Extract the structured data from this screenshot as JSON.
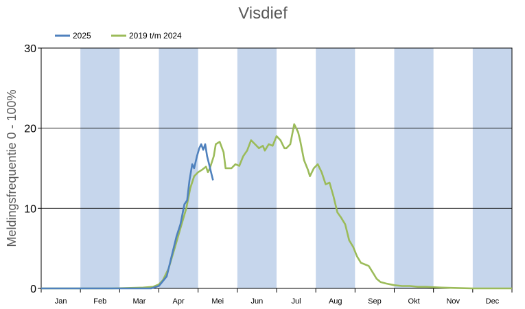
{
  "chart_data": {
    "type": "line",
    "title": "Visdief",
    "ylabel": "Meldingsfrequentie 0 - 100%",
    "xlabel": "",
    "ylim": [
      0,
      30
    ],
    "yticks": [
      0,
      10,
      20,
      30
    ],
    "grid": "horizontal",
    "legend_position": "top-left",
    "month_bands": "alternating",
    "colors": {
      "band": "#c6d6ec",
      "grid": "#000000"
    },
    "categories": [
      "Jan",
      "Feb",
      "Mar",
      "Apr",
      "Mei",
      "Jun",
      "Jul",
      "Aug",
      "Sep",
      "Okt",
      "Nov",
      "Dec"
    ],
    "series": [
      {
        "name": "2025",
        "color": "#4f81bd",
        "points": [
          [
            0,
            0
          ],
          [
            1.5,
            0
          ],
          [
            2.5,
            0
          ],
          [
            2.8,
            0
          ],
          [
            3.0,
            0.3
          ],
          [
            3.2,
            1.5
          ],
          [
            3.3,
            3.5
          ],
          [
            3.45,
            6.5
          ],
          [
            3.55,
            8.0
          ],
          [
            3.65,
            10.5
          ],
          [
            3.72,
            11.0
          ],
          [
            3.78,
            13.5
          ],
          [
            3.85,
            15.5
          ],
          [
            3.9,
            15.0
          ],
          [
            3.97,
            16.5
          ],
          [
            4.03,
            17.5
          ],
          [
            4.08,
            18.0
          ],
          [
            4.13,
            17.3
          ],
          [
            4.18,
            18.0
          ],
          [
            4.23,
            16.5
          ],
          [
            4.28,
            15.5
          ],
          [
            4.33,
            14.5
          ],
          [
            4.38,
            13.5
          ]
        ]
      },
      {
        "name": "2019 t/m 2024",
        "color": "#9bbb59",
        "points": [
          [
            0,
            0
          ],
          [
            1.8,
            0
          ],
          [
            2.6,
            0.1
          ],
          [
            2.85,
            0.2
          ],
          [
            3.0,
            0.5
          ],
          [
            3.1,
            1.0
          ],
          [
            3.25,
            2.5
          ],
          [
            3.4,
            5.0
          ],
          [
            3.55,
            7.5
          ],
          [
            3.7,
            10.0
          ],
          [
            3.8,
            12.5
          ],
          [
            3.9,
            14.0
          ],
          [
            4.0,
            14.5
          ],
          [
            4.1,
            14.8
          ],
          [
            4.2,
            15.2
          ],
          [
            4.25,
            14.5
          ],
          [
            4.3,
            15.0
          ],
          [
            4.4,
            16.5
          ],
          [
            4.45,
            18.0
          ],
          [
            4.55,
            18.3
          ],
          [
            4.65,
            17.0
          ],
          [
            4.7,
            15.0
          ],
          [
            4.85,
            15.0
          ],
          [
            4.95,
            15.5
          ],
          [
            5.05,
            15.3
          ],
          [
            5.15,
            16.5
          ],
          [
            5.25,
            17.2
          ],
          [
            5.35,
            18.5
          ],
          [
            5.45,
            18.0
          ],
          [
            5.55,
            17.5
          ],
          [
            5.65,
            17.8
          ],
          [
            5.7,
            17.2
          ],
          [
            5.8,
            18.0
          ],
          [
            5.9,
            17.8
          ],
          [
            6.0,
            19.0
          ],
          [
            6.1,
            18.5
          ],
          [
            6.2,
            17.5
          ],
          [
            6.25,
            17.5
          ],
          [
            6.35,
            18.0
          ],
          [
            6.45,
            20.5
          ],
          [
            6.55,
            19.5
          ],
          [
            6.6,
            18.5
          ],
          [
            6.7,
            16.0
          ],
          [
            6.8,
            14.8
          ],
          [
            6.85,
            14.0
          ],
          [
            6.95,
            15.0
          ],
          [
            7.05,
            15.5
          ],
          [
            7.15,
            14.5
          ],
          [
            7.25,
            13.0
          ],
          [
            7.35,
            13.2
          ],
          [
            7.45,
            11.5
          ],
          [
            7.55,
            9.5
          ],
          [
            7.65,
            8.8
          ],
          [
            7.75,
            8.0
          ],
          [
            7.85,
            6.0
          ],
          [
            7.95,
            5.2
          ],
          [
            8.05,
            4.0
          ],
          [
            8.15,
            3.2
          ],
          [
            8.25,
            3.0
          ],
          [
            8.35,
            2.8
          ],
          [
            8.45,
            2.0
          ],
          [
            8.55,
            1.2
          ],
          [
            8.65,
            0.8
          ],
          [
            8.8,
            0.6
          ],
          [
            9.0,
            0.4
          ],
          [
            9.2,
            0.3
          ],
          [
            9.4,
            0.3
          ],
          [
            9.6,
            0.2
          ],
          [
            9.8,
            0.2
          ],
          [
            10.0,
            0.15
          ],
          [
            10.2,
            0.1
          ],
          [
            10.6,
            0.05
          ],
          [
            11.0,
            0
          ],
          [
            12.0,
            0
          ]
        ]
      }
    ]
  }
}
